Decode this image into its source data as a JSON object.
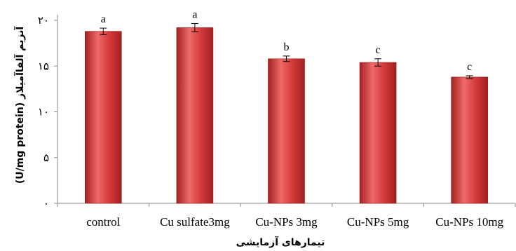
{
  "chart_data": {
    "type": "bar",
    "categories": [
      "control",
      "Cu sulfate3mg",
      "Cu-NPs 3mg",
      "Cu-NPs 5mg",
      "Cu-NPs 10mg"
    ],
    "values": [
      18.8,
      19.2,
      15.8,
      15.4,
      13.8
    ],
    "errors": [
      0.35,
      0.45,
      0.3,
      0.4,
      0.15
    ],
    "significance": [
      "a",
      "a",
      "b",
      "c",
      "c"
    ],
    "yticks": [
      "۰",
      "۵",
      "۱۰",
      "۱۵",
      "۲۰"
    ],
    "ylim": [
      0,
      20
    ],
    "ylabel": "آنزیم آلفاآمیلاز (U/mg protein)",
    "xlabel": "تیمارهای آزمایشی",
    "title": "",
    "grid": false,
    "bar_color": "#d63c3c",
    "bar_highlight": "#ef6a6a",
    "bar_shadow": "#a31f20"
  }
}
